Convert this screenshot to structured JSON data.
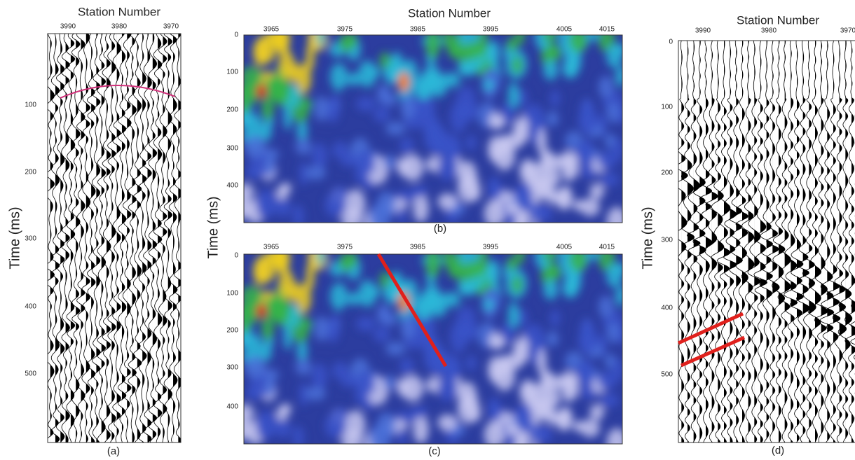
{
  "figure": {
    "panels": [
      {
        "label": "(a)",
        "x_title": "Station Number",
        "y_title": "Time (ms)",
        "x_ticks": [
          3990,
          3980,
          3970
        ],
        "y_ticks": [
          100,
          200,
          300,
          400,
          500
        ]
      },
      {
        "label": "(b)",
        "x_title": "Station Number",
        "y_title": "Time (ms)",
        "x_ticks": [
          3965,
          3975,
          3985,
          3995,
          4005,
          4015
        ],
        "y_ticks": [
          0,
          100,
          200,
          300,
          400
        ]
      },
      {
        "label": "(c)",
        "x_ticks": [
          3965,
          3975,
          3985,
          3995,
          4005,
          4015
        ],
        "y_ticks": [
          0,
          100,
          200,
          300,
          400
        ]
      },
      {
        "label": "(d)",
        "x_title": "Station Number",
        "y_title": "Time (ms)",
        "x_ticks": [
          3990,
          3980,
          3970
        ],
        "y_ticks": [
          0,
          100,
          200,
          300,
          400,
          500
        ]
      }
    ]
  }
}
